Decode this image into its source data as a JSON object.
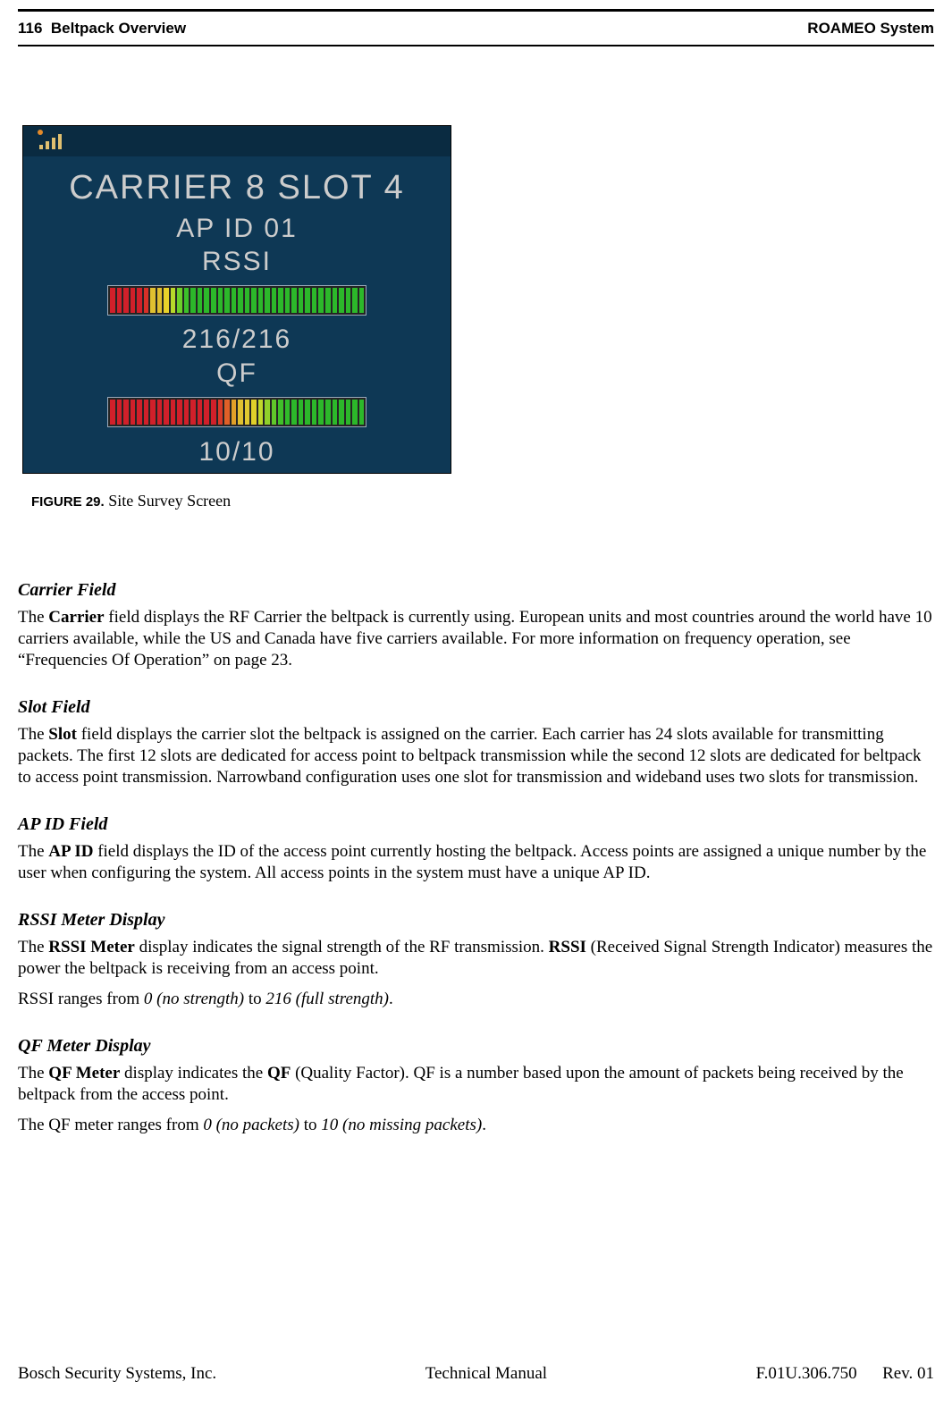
{
  "header": {
    "page_num": "116",
    "section": "Beltpack Overview",
    "system": "ROAMEO System"
  },
  "device_screen": {
    "bg_color": "#0e3855",
    "status_bar_color": "#0a2b41",
    "text_color": "#cccccc",
    "status_icon_dot_color": "#e38a2a",
    "status_icon_bar_color": "#e0c070",
    "line_carrier_slot": "CARRIER 8 SLOT 4",
    "line_ap_id": "AP ID 01",
    "line_rssi_label": "RSSI",
    "line_rssi_value": "216/216",
    "line_qf_label": "QF",
    "line_qf_value": "10/10",
    "meter_border_color": "#9aaabb",
    "meter_bg_color": "#242424",
    "rssi_meter": {
      "segments": 38,
      "filled": 38,
      "gradient": [
        "#d1202a",
        "#d1202a",
        "#d1202a",
        "#d1202a",
        "#d1202a",
        "#d83028",
        "#e0c030",
        "#e0c030",
        "#e8d22a",
        "#b8d82a",
        "#6ccf2a",
        "#3cc02a",
        "#2cb82a",
        "#2cb82a",
        "#2cb82a",
        "#2cb82a",
        "#2cb82a",
        "#2cb82a",
        "#2cb82a",
        "#2cb82a",
        "#2cb82a",
        "#2cb82a",
        "#2cb82a",
        "#2cb82a",
        "#2cb82a",
        "#2cb82a",
        "#2cb82a",
        "#2cb82a",
        "#2cb82a",
        "#2cb82a",
        "#2cb82a",
        "#2cb82a",
        "#2cb82a",
        "#2cb82a",
        "#2cb82a",
        "#2cb82a",
        "#2cb82a",
        "#2cb82a"
      ]
    },
    "qf_meter": {
      "segments": 38,
      "filled": 38,
      "gradient": [
        "#d1202a",
        "#d1202a",
        "#d1202a",
        "#d1202a",
        "#d1202a",
        "#d1202a",
        "#d1202a",
        "#d1202a",
        "#d1202a",
        "#d1202a",
        "#d1202a",
        "#d1202a",
        "#d1202a",
        "#d1202a",
        "#d1202a",
        "#d1202a",
        "#d83a28",
        "#e06028",
        "#e0a028",
        "#e0c030",
        "#e0c830",
        "#e0d02a",
        "#c0d82a",
        "#90d02a",
        "#60c82a",
        "#40c02a",
        "#30bc2a",
        "#2cb82a",
        "#2cb82a",
        "#2cb82a",
        "#2cb82a",
        "#2cb82a",
        "#2cb82a",
        "#2cb82a",
        "#2cb82a",
        "#2cb82a",
        "#2cb82a",
        "#2cb82a"
      ]
    }
  },
  "fig_caption": {
    "label": "FIGURE 29.",
    "text": "Site Survey Screen"
  },
  "sect_carrier": {
    "title": "Carrier Field",
    "p1_pre": "The ",
    "p1_b": "Carrier",
    "p1_post": " field displays the RF Carrier the beltpack is currently using. European units and most countries around the world have 10 carriers available, while the US and Canada have five carriers available. For more information on frequency operation, see “Frequencies Of Operation” on page 23."
  },
  "sect_slot": {
    "title": "Slot Field",
    "p1_pre": "The ",
    "p1_b": "Slot",
    "p1_post": " field displays the carrier slot the beltpack is assigned on the carrier. Each carrier has 24 slots available for transmitting packets. The first 12 slots are dedicated for access point to beltpack transmission while the second 12 slots are dedicated for beltpack to access point transmission. Narrowband configuration uses one slot for transmission and wideband uses two slots for transmission."
  },
  "sect_apid": {
    "title": "AP ID Field",
    "p1_pre": "The ",
    "p1_b": "AP ID",
    "p1_post": " field displays the ID of the access point currently hosting the beltpack. Access points are assigned a unique number by the user when configuring the system. All access points in the system must have a unique AP ID."
  },
  "sect_rssi": {
    "title": "RSSI Meter Display",
    "p1_pre": "The ",
    "p1_b1": "RSSI Meter",
    "p1_mid": " display indicates the signal strength of the RF transmission. ",
    "p1_b2": "RSSI",
    "p1_post": " (Received Signal Strength Indicator) measures the power the beltpack is receiving from an access point.",
    "p2_pre": "RSSI ranges from ",
    "p2_i1": "0 (no strength)",
    "p2_mid": " to ",
    "p2_i2": "216 (full strength)",
    "p2_post": "."
  },
  "sect_qf": {
    "title": "QF Meter Display",
    "p1_pre": "The ",
    "p1_b1": "QF Meter",
    "p1_mid": " display indicates the ",
    "p1_b2": "QF",
    "p1_post": " (Quality Factor). QF is a number based upon the amount of packets being received by the beltpack from the access point.",
    "p2_pre": "The QF meter ranges from ",
    "p2_i1": "0 (no packets)",
    "p2_mid": " to ",
    "p2_i2": "10 (no missing packets)",
    "p2_post": "."
  },
  "footer": {
    "left": "Bosch Security Systems, Inc.",
    "center": "Technical Manual",
    "doc_num": "F.01U.306.750",
    "rev": "Rev. 01"
  }
}
